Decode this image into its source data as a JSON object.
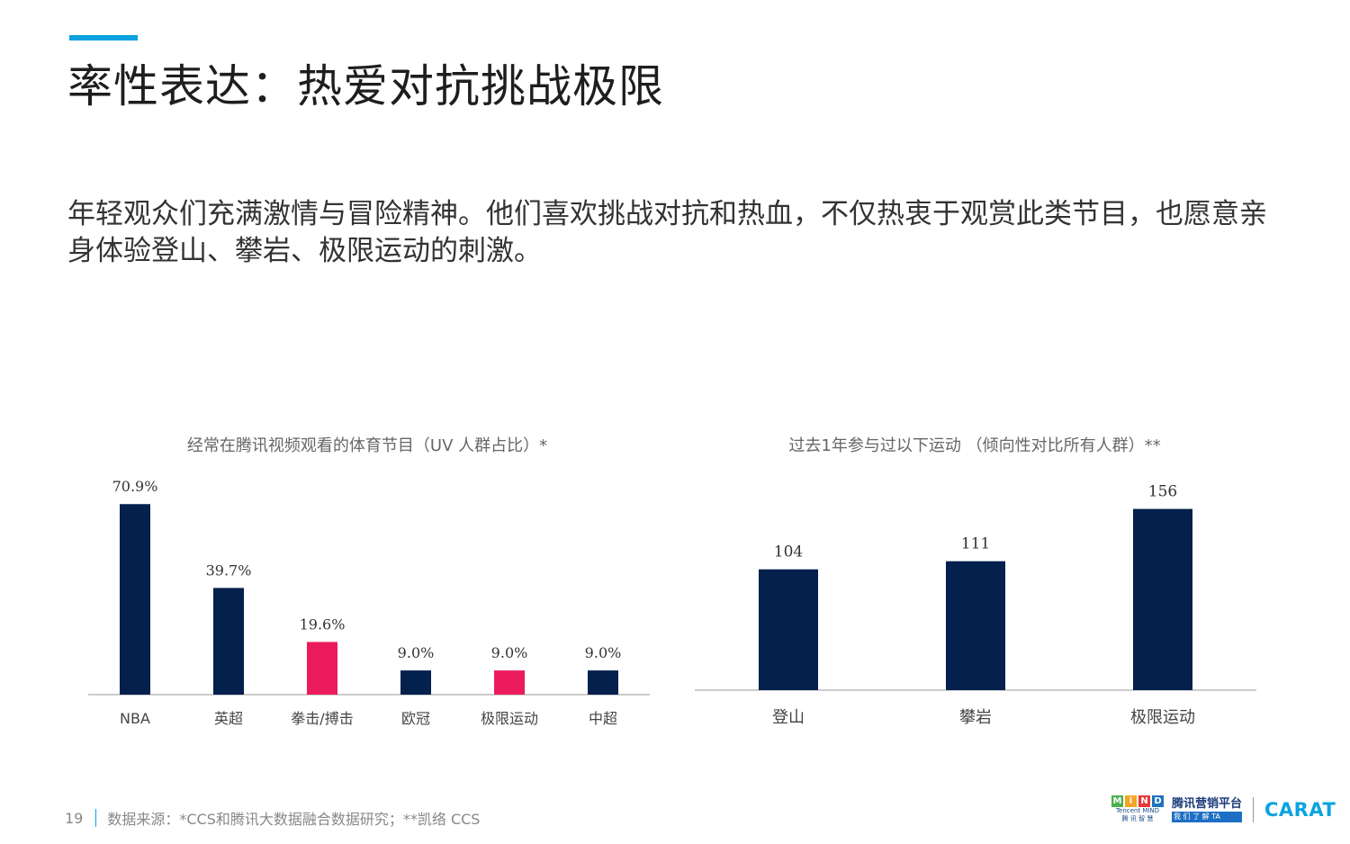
{
  "title": "率性表达：热爱对抗挑战极限",
  "subtitle": "年轻观众们充满激情与冒险精神。他们喜欢挑战对抗和热血，不仅热衷于观赏此类节目，也愿意亲身体验登山、攀岩、极限运动的刺激。",
  "colors": {
    "accent": "#0aa3e0",
    "navy": "#04204d",
    "pink": "#ec1b5e",
    "axis": "#bbbbbb"
  },
  "chart_data": [
    {
      "type": "bar",
      "title": "经常在腾讯视频观看的体育节目（UV 人群占比）*",
      "categories": [
        "NBA",
        "英超",
        "拳击/搏击",
        "欧冠",
        "极限运动",
        "中超"
      ],
      "values": [
        70.9,
        39.7,
        19.6,
        9.0,
        9.0,
        9.0
      ],
      "value_labels": [
        "70.9%",
        "39.7%",
        "19.6%",
        "9.0%",
        "9.0%",
        "9.0%"
      ],
      "highlight": [
        false,
        false,
        true,
        false,
        true,
        false
      ],
      "ylim": [
        0,
        75
      ]
    },
    {
      "type": "bar",
      "title": "过去1年参与过以下运动 （倾向性对比所有人群）**",
      "categories": [
        "登山",
        "攀岩",
        "极限运动"
      ],
      "values": [
        104,
        111,
        156
      ],
      "value_labels": [
        "104",
        "111",
        "156"
      ],
      "highlight": [
        false,
        false,
        false
      ],
      "ylim": [
        0,
        165
      ]
    }
  ],
  "footer": {
    "page_number": "19",
    "source": "数据来源：*CCS和腾讯大数据融合数据研究；**凯络 CCS"
  },
  "logos": {
    "mind_letters": [
      "M",
      "i",
      "N",
      "D"
    ],
    "mind_sub": "Tencent MIND",
    "mind_cn": "腾 讯 智 慧",
    "tencent_top": "腾讯营销平台",
    "tencent_bottom": "我 们 了 解 TA",
    "carat": "CARAT"
  }
}
